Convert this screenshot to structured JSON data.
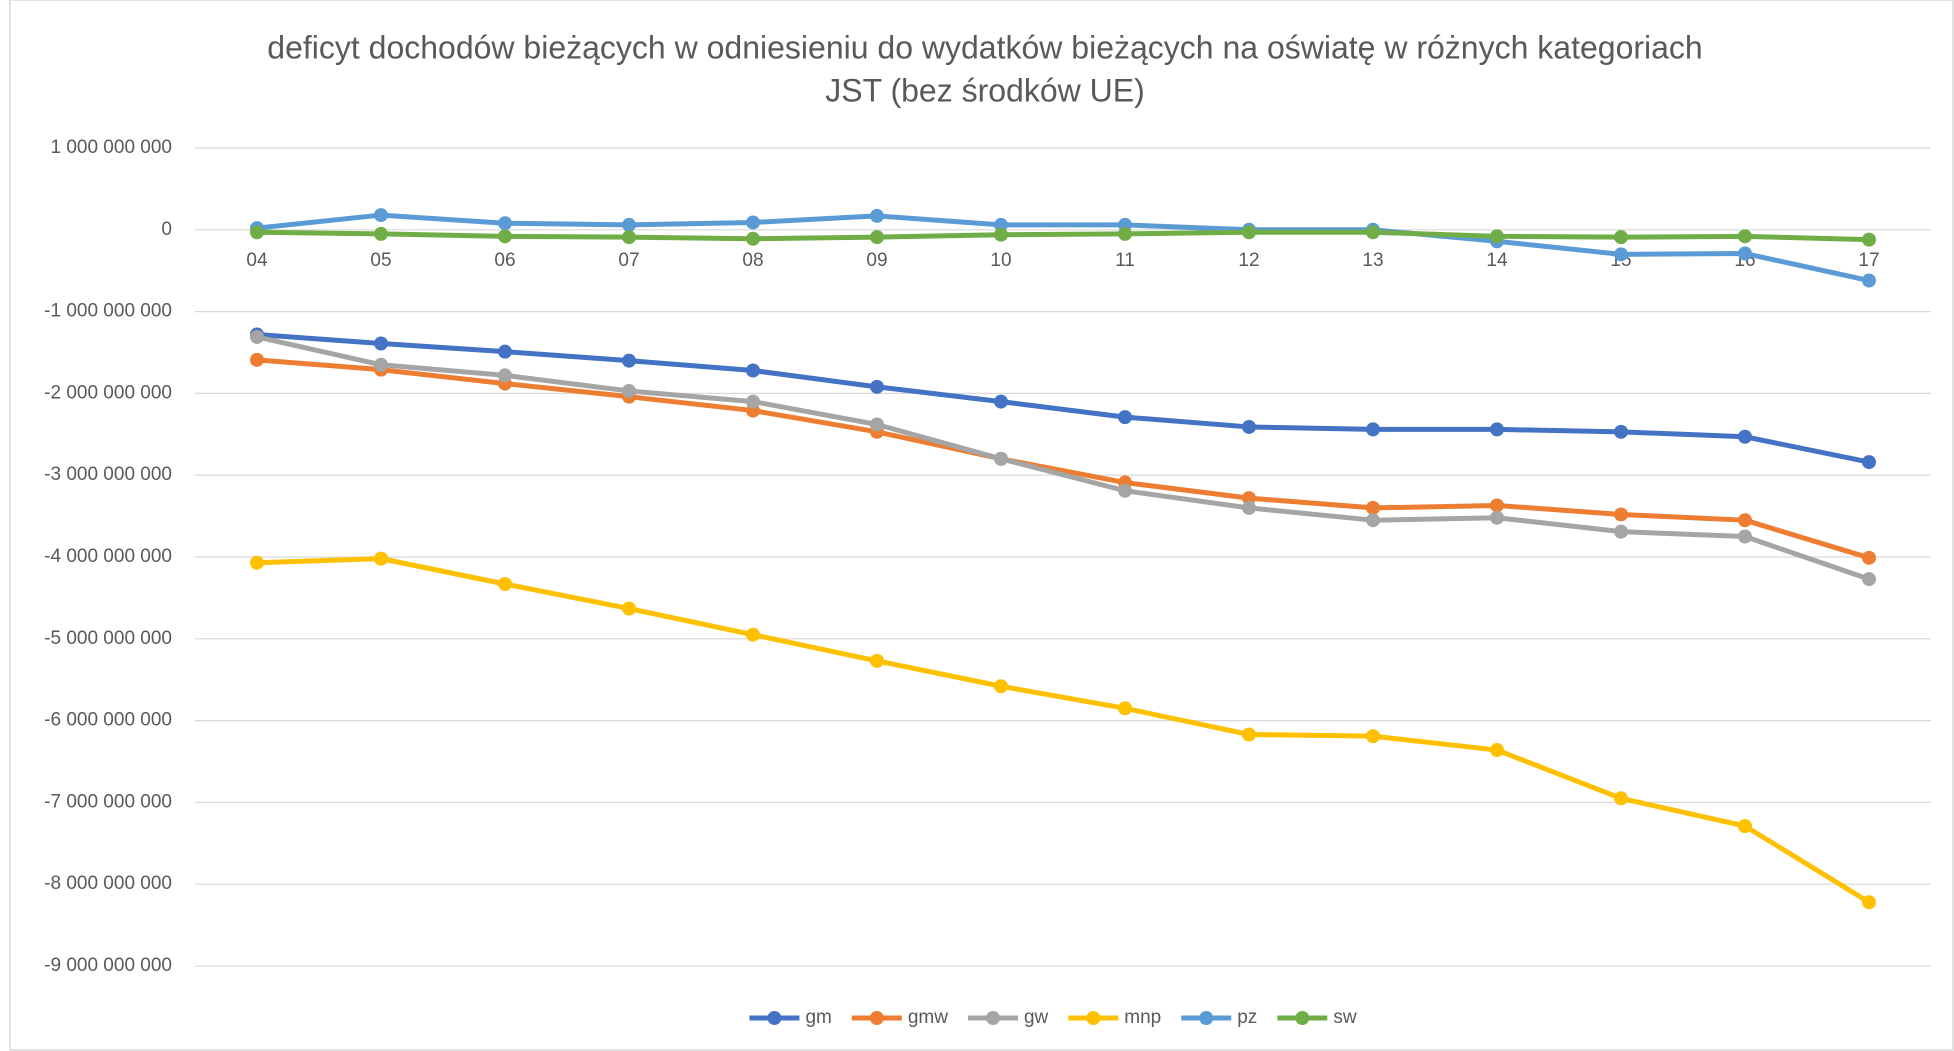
{
  "chart_data": {
    "type": "line",
    "title": "deficyt dochodów bieżących w odniesieniu do wydatków bieżących na oświatę w różnych kategoriach",
    "subtitle": "JST (bez środków UE)",
    "categories": [
      "04",
      "05",
      "06",
      "07",
      "08",
      "09",
      "10",
      "11",
      "12",
      "13",
      "14",
      "15",
      "16",
      "17"
    ],
    "series": [
      {
        "name": "gm",
        "color": "#4472c4",
        "values": [
          -1280000000,
          -1390000000,
          -1490000000,
          -1600000000,
          -1720000000,
          -1920000000,
          -2100000000,
          -2290000000,
          -2410000000,
          -2440000000,
          -2440000000,
          -2470000000,
          -2530000000,
          -2840000000
        ]
      },
      {
        "name": "gmw",
        "color": "#ed7d31",
        "values": [
          -1590000000,
          -1710000000,
          -1880000000,
          -2040000000,
          -2210000000,
          -2470000000,
          -2800000000,
          -3090000000,
          -3280000000,
          -3400000000,
          -3370000000,
          -3480000000,
          -3550000000,
          -4010000000
        ]
      },
      {
        "name": "gw",
        "color": "#a5a5a5",
        "values": [
          -1310000000,
          -1650000000,
          -1780000000,
          -1970000000,
          -2100000000,
          -2380000000,
          -2800000000,
          -3190000000,
          -3400000000,
          -3550000000,
          -3520000000,
          -3690000000,
          -3750000000,
          -4270000000
        ]
      },
      {
        "name": "mnp",
        "color": "#ffc000",
        "values": [
          -4070000000,
          -4020000000,
          -4330000000,
          -4630000000,
          -4950000000,
          -5270000000,
          -5580000000,
          -5850000000,
          -6170000000,
          -6190000000,
          -6360000000,
          -6950000000,
          -7290000000,
          -8220000000
        ]
      },
      {
        "name": "pz",
        "color": "#5b9bd5",
        "values": [
          20000000,
          180000000,
          80000000,
          60000000,
          90000000,
          170000000,
          60000000,
          60000000,
          0,
          0,
          -140000000,
          -300000000,
          -290000000,
          -620000000
        ]
      },
      {
        "name": "sw",
        "color": "#70ad47",
        "values": [
          -30000000,
          -50000000,
          -80000000,
          -90000000,
          -110000000,
          -90000000,
          -60000000,
          -50000000,
          -30000000,
          -30000000,
          -80000000,
          -90000000,
          -80000000,
          -120000000
        ]
      }
    ],
    "ylim": [
      -9000000000,
      1000000000
    ],
    "yticks": [
      {
        "value": 1000000000,
        "label": "1 000 000 000"
      },
      0,
      {
        "value": -1000000000,
        "label": "-1 000 000 000"
      },
      {
        "value": -2000000000,
        "label": "-2 000 000 000"
      },
      {
        "value": -3000000000,
        "label": "-3 000 000 000"
      },
      {
        "value": -4000000000,
        "label": "-4 000 000 000"
      },
      {
        "value": -5000000000,
        "label": "-5 000 000 000"
      },
      {
        "value": -6000000000,
        "label": "-6 000 000 000"
      },
      {
        "value": -7000000000,
        "label": "-7 000 000 000"
      },
      {
        "value": -8000000000,
        "label": "-8 000 000 000"
      },
      {
        "value": -9000000000,
        "label": "-9 000 000 000"
      }
    ],
    "grid": true,
    "legend": "bottom"
  }
}
